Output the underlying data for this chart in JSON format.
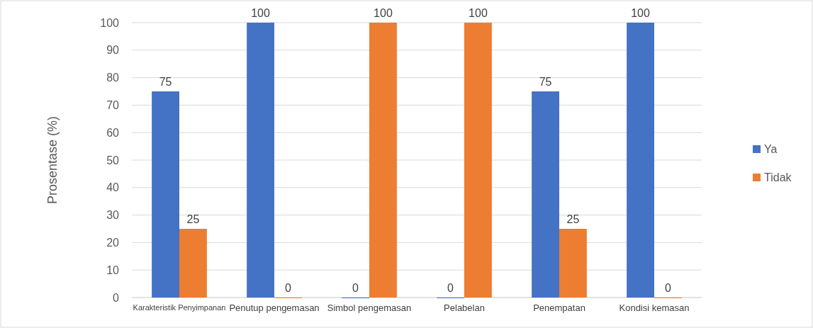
{
  "chart_data": {
    "type": "bar",
    "ylabel": "Prosentase (%)",
    "categories": [
      "Karakteristik Penyimpanan",
      "Penutup pengemasan",
      "Simbol pengemasan",
      "Pelabelan",
      "Penempatan",
      "Kondisi kemasan"
    ],
    "series": [
      {
        "name": "Ya",
        "color": "#4472c4",
        "values": [
          75,
          100,
          0,
          0,
          75,
          100
        ]
      },
      {
        "name": "Tidak",
        "color": "#ed7d31",
        "values": [
          25,
          0,
          100,
          100,
          25,
          0
        ]
      }
    ],
    "ylim": [
      0,
      100
    ],
    "yticks": [
      0,
      10,
      20,
      30,
      40,
      50,
      60,
      70,
      80,
      90,
      100
    ],
    "grid": "y",
    "legend": "right",
    "data_labels": true
  }
}
